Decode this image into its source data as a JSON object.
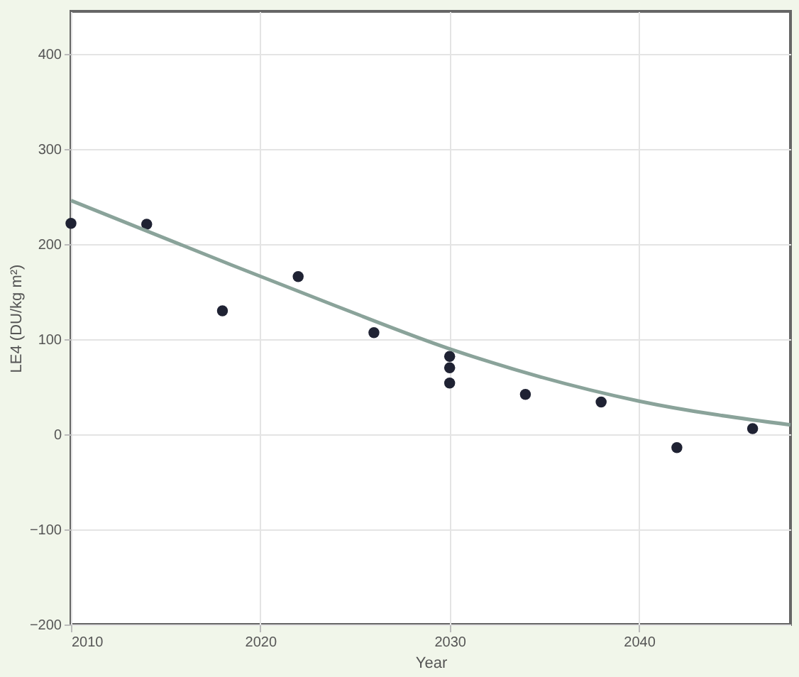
{
  "chart_data": {
    "type": "scatter",
    "xlabel": "Year",
    "ylabel": "LE4 (DU/kg m²)",
    "series": [
      {
        "type": "scatter",
        "marker": "circle",
        "color": "#1f2233",
        "x": [
          2010,
          2014,
          2018,
          2022,
          2026,
          2030,
          2030,
          2030,
          2034,
          2038,
          2042,
          2046
        ],
        "values": [
          222,
          221,
          130,
          166,
          107,
          82,
          70,
          54,
          42,
          34,
          -14,
          6
        ]
      },
      {
        "type": "line",
        "color": "#8aa39a",
        "x": [
          2010,
          2018,
          2024,
          2030,
          2040,
          2048
        ],
        "values": [
          246,
          182,
          135,
          90,
          35,
          10
        ]
      }
    ],
    "xlim": [
      2010,
      2048
    ],
    "xticks": [
      2010,
      2020,
      2030,
      2040
    ],
    "ylim": [
      -200,
      445
    ],
    "yticks": [
      -200,
      -100,
      0,
      100,
      200,
      300,
      400
    ],
    "grid": true
  }
}
